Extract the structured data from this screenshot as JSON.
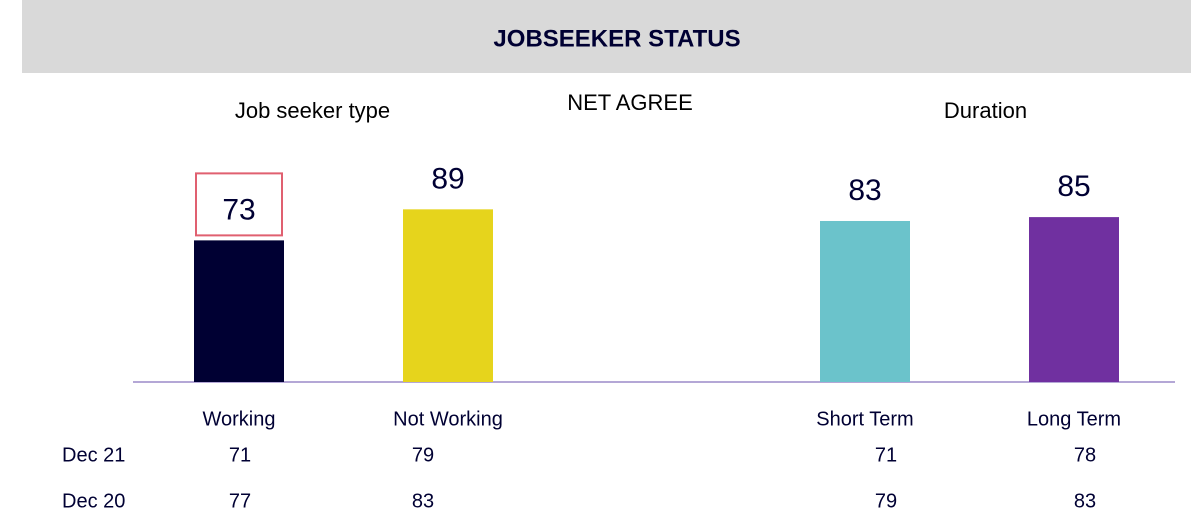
{
  "chart_data": {
    "type": "bar",
    "title": "JOBSEEKER STATUS",
    "measure": "NET AGREE",
    "groups": [
      {
        "label": "Job seeker type",
        "members": [
          0,
          1
        ]
      },
      {
        "label": "Duration",
        "members": [
          2,
          3
        ]
      }
    ],
    "categories": [
      "Working",
      "Not Working",
      "Short Term",
      "Long Term"
    ],
    "values": [
      73,
      89,
      83,
      85
    ],
    "colors": [
      "#000033",
      "#e6d41c",
      "#6bc3cb",
      "#7030a0"
    ],
    "highlighted": [
      0
    ],
    "comparison": [
      {
        "name": "Dec 21",
        "values": [
          71,
          79,
          71,
          78
        ]
      },
      {
        "name": "Dec 20",
        "values": [
          77,
          83,
          79,
          83
        ]
      }
    ]
  }
}
